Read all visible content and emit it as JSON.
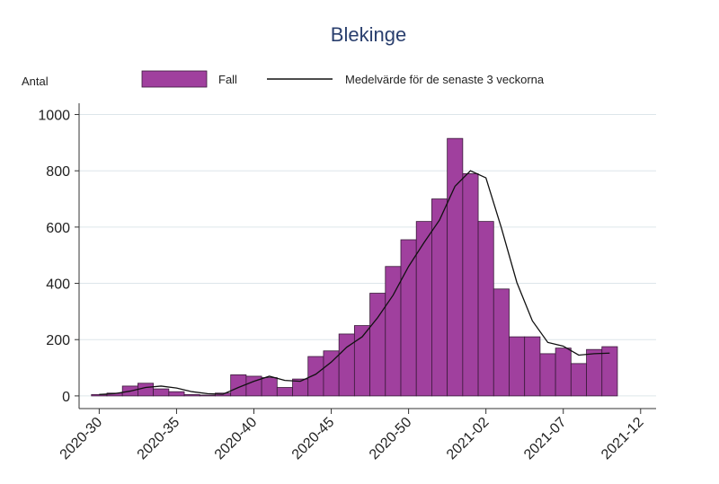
{
  "chart_data": {
    "type": "bar",
    "title": "Blekinge",
    "ylabel": "Antal",
    "x": [
      0,
      1,
      2,
      3,
      4,
      5,
      6,
      7,
      8,
      9,
      10,
      11,
      12,
      13,
      14,
      15,
      16,
      17,
      18,
      19,
      20,
      21,
      22,
      23,
      24,
      25,
      26,
      27,
      28,
      29,
      30,
      31,
      32,
      33
    ],
    "xlim": [
      -1.3,
      36
    ],
    "xticks": [
      {
        "value": 0,
        "label": "2020-30"
      },
      {
        "value": 5,
        "label": "2020-35"
      },
      {
        "value": 10,
        "label": "2020-40"
      },
      {
        "value": 15,
        "label": "2020-45"
      },
      {
        "value": 20,
        "label": "2020-50"
      },
      {
        "value": 25,
        "label": "2021-02"
      },
      {
        "value": 30,
        "label": "2021-07"
      },
      {
        "value": 35,
        "label": "2021-12"
      }
    ],
    "ylim": [
      -45,
      1040
    ],
    "yticks": [
      0,
      200,
      400,
      600,
      800,
      1000
    ],
    "grid": true,
    "series": [
      {
        "name": "Fall",
        "type": "bar",
        "color": "#a0409e",
        "values": [
          5,
          10,
          35,
          45,
          25,
          15,
          5,
          3,
          10,
          75,
          70,
          65,
          30,
          60,
          140,
          160,
          220,
          250,
          365,
          460,
          555,
          620,
          700,
          915,
          790,
          620,
          380,
          210,
          210,
          150,
          170,
          115,
          165,
          175
        ]
      },
      {
        "name": "Medelvärde för de senaste 3 veckorna",
        "type": "line",
        "color": "#111111",
        "values": [
          5,
          8,
          17,
          30,
          35,
          28,
          15,
          8,
          6,
          30,
          52,
          70,
          55,
          52,
          77,
          120,
          173,
          210,
          278,
          358,
          460,
          545,
          625,
          745,
          800,
          775,
          597,
          403,
          267,
          190,
          177,
          145,
          150,
          152
        ]
      }
    ]
  }
}
